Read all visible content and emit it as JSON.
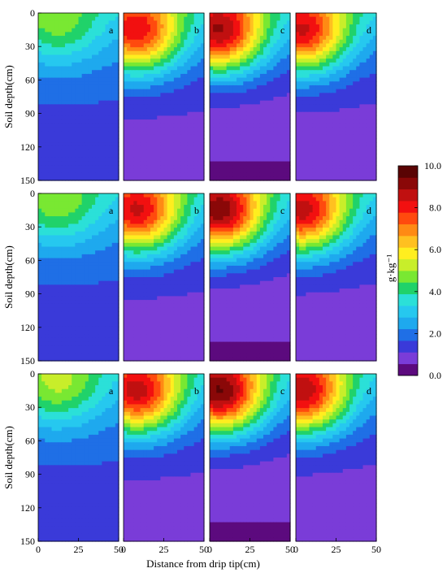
{
  "chart_data": {
    "type": "heatmap",
    "colormap": [
      "#5c0a7e",
      "#7a3cd8",
      "#3a3ad9",
      "#1f6fe6",
      "#1ea9ee",
      "#26c8ef",
      "#2be0d8",
      "#20d26a",
      "#79e832",
      "#c8ee2a",
      "#ffee1f",
      "#ffc020",
      "#ff8a14",
      "#ff4a0e",
      "#f21010",
      "#c01010",
      "#8a0808",
      "#5a0404"
    ],
    "colorbar": {
      "label": "g·kg⁻¹",
      "range": [
        0,
        10
      ],
      "ticks": [
        "0.0",
        "2.0",
        "4.0",
        "6.0",
        "8.0",
        "10.0"
      ]
    },
    "x_axis": {
      "title": "Distance from drip tip(cm)",
      "range": [
        0,
        50
      ],
      "ticks": [
        "0",
        "25",
        "50"
      ]
    },
    "y_axis": {
      "title": "Soil depth(cm)",
      "range": [
        0,
        150
      ],
      "ticks": [
        "0",
        "30",
        "60",
        "90",
        "120",
        "150"
      ]
    },
    "rows": [
      {
        "panels": [
          {
            "label": "a",
            "peak_value": 4.8,
            "peak_x_cm": 12,
            "peak_depth_cm": 12,
            "bottom_value": 1.2
          },
          {
            "label": "b",
            "peak_value": 8.6,
            "peak_x_cm": 8,
            "peak_depth_cm": 18,
            "bottom_value": 0.6
          },
          {
            "label": "c",
            "peak_value": 9.4,
            "peak_x_cm": 6,
            "peak_depth_cm": 18,
            "bottom_value": 0.3
          },
          {
            "label": "d",
            "peak_value": 8.8,
            "peak_x_cm": 4,
            "peak_depth_cm": 18,
            "bottom_value": 0.5
          }
        ]
      },
      {
        "panels": [
          {
            "label": "a",
            "peak_value": 4.9,
            "peak_x_cm": 12,
            "peak_depth_cm": 12,
            "bottom_value": 1.2
          },
          {
            "label": "b",
            "peak_value": 8.8,
            "peak_x_cm": 8,
            "peak_depth_cm": 18,
            "bottom_value": 0.6
          },
          {
            "label": "c",
            "peak_value": 9.7,
            "peak_x_cm": 6,
            "peak_depth_cm": 18,
            "bottom_value": 0.3
          },
          {
            "label": "d",
            "peak_value": 9.0,
            "peak_x_cm": 4,
            "peak_depth_cm": 18,
            "bottom_value": 0.5
          }
        ]
      },
      {
        "panels": [
          {
            "label": "a",
            "peak_value": 5.2,
            "peak_x_cm": 12,
            "peak_depth_cm": 12,
            "bottom_value": 1.2
          },
          {
            "label": "b",
            "peak_value": 9.0,
            "peak_x_cm": 8,
            "peak_depth_cm": 18,
            "bottom_value": 0.6
          },
          {
            "label": "c",
            "peak_value": 9.9,
            "peak_x_cm": 6,
            "peak_depth_cm": 18,
            "bottom_value": 0.3
          },
          {
            "label": "d",
            "peak_value": 9.2,
            "peak_x_cm": 4,
            "peak_depth_cm": 18,
            "bottom_value": 0.5
          }
        ]
      }
    ]
  }
}
